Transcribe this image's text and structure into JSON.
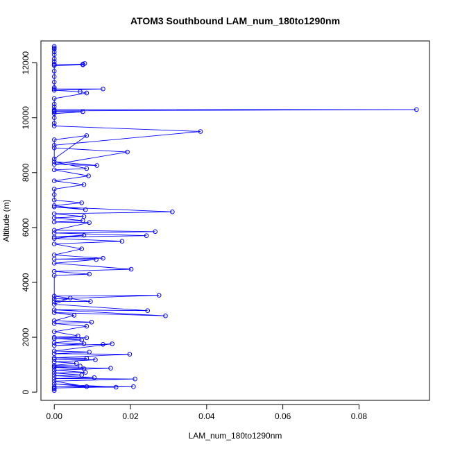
{
  "chart_data": {
    "type": "line",
    "title": "ATOM3 Southbound LAM_num_180to1290nm",
    "xlabel": "LAM_num_180to1290nm",
    "ylabel": "Altitude (m)",
    "xlim": [
      -0.0035,
      0.0985
    ],
    "ylim": [
      -300,
      12800
    ],
    "x_ticks": [
      0.0,
      0.02,
      0.04,
      0.06,
      0.08
    ],
    "x_tick_labels": [
      "0.00",
      "0.02",
      "0.04",
      "0.06",
      "0.08"
    ],
    "y_ticks": [
      0,
      2000,
      4000,
      6000,
      8000,
      10000,
      12000
    ],
    "y_tick_labels": [
      "0",
      "2000",
      "4000",
      "6000",
      "8000",
      "10000",
      "12000"
    ],
    "grid": false,
    "legend": "none",
    "series_color": "#0000ff",
    "markers": "open-circle",
    "series": [
      {
        "x": [
          0,
          0,
          0,
          0,
          0,
          0,
          0,
          0,
          0,
          0,
          0.0075,
          0.008,
          0.0075,
          0,
          0,
          0,
          0,
          0,
          0,
          0.0128,
          0,
          0.0068,
          0.0085,
          0,
          0,
          0,
          0,
          0.0951,
          0,
          0,
          0,
          0.0075,
          0,
          0,
          0,
          0,
          0.0384,
          0,
          0,
          0.0085,
          0,
          0,
          0.0192,
          0,
          0.0112,
          0,
          0.0085,
          0,
          0.009,
          0,
          0.0078,
          0,
          0,
          0,
          0.0072,
          0,
          0.0082,
          0,
          0.031,
          0,
          0.0078,
          0,
          0.0075,
          0,
          0.0092,
          0,
          0.0265,
          0,
          0.0242,
          0,
          0.0078,
          0,
          0.0178,
          0,
          0.0072,
          0,
          0.0128,
          0,
          0.011,
          0,
          0.0202,
          0,
          0.0092,
          0,
          0,
          0.0275,
          0,
          0.0095,
          0,
          0.0042,
          0,
          0.0245,
          0,
          0.0292,
          0,
          0.0052,
          0,
          0.0098,
          0,
          0.0085,
          0,
          0.0062,
          0,
          0.0085,
          0,
          0.0072,
          0,
          0.0078,
          0,
          0.0128,
          0.0152,
          0,
          0.0092,
          0,
          0.0198,
          0,
          0.0085,
          0,
          0.0108,
          0,
          0.0058,
          0,
          0.0068,
          0,
          0.0078,
          0,
          0.0148,
          0,
          0.0082,
          0,
          0.0072,
          0,
          0.0105,
          0,
          0.0212,
          0,
          0.0085,
          0,
          0.0162,
          0,
          0.0208,
          0,
          0,
          0
        ],
        "y": [
          12600,
          12550,
          12500,
          12400,
          12300,
          12150,
          12050,
          11950,
          11950,
          11950,
          11950,
          11980,
          11930,
          11900,
          11700,
          11500,
          11300,
          11100,
          11050,
          11050,
          11000,
          10950,
          10900,
          10700,
          10500,
          10400,
          10300,
          10300,
          10250,
          10230,
          10220,
          10220,
          10150,
          10000,
          9800,
          9700,
          9500,
          9000,
          9200,
          9350,
          8500,
          8900,
          8750,
          8300,
          8260,
          8400,
          8150,
          8100,
          7880,
          7700,
          7560,
          7400,
          7200,
          7000,
          6900,
          6800,
          6650,
          6750,
          6570,
          6500,
          6400,
          6350,
          6250,
          6200,
          6180,
          5900,
          5850,
          5800,
          5700,
          5650,
          5720,
          5600,
          5500,
          5400,
          5220,
          5000,
          4880,
          4850,
          4830,
          4700,
          4480,
          4400,
          4300,
          4250,
          3400,
          3530,
          3500,
          3300,
          3300,
          3430,
          3200,
          2970,
          3000,
          2780,
          2900,
          2800,
          2600,
          2550,
          2500,
          2400,
          2200,
          2050,
          2000,
          1980,
          1950,
          1900,
          1800,
          1760,
          1700,
          1740,
          1760,
          1500,
          1460,
          1400,
          1380,
          1250,
          1230,
          1200,
          1180,
          1100,
          1050,
          980,
          950,
          930,
          850,
          900,
          870,
          800,
          720,
          700,
          620,
          600,
          530,
          500,
          480,
          400,
          200,
          300,
          180,
          200,
          200,
          150,
          120,
          60
        ]
      }
    ]
  }
}
